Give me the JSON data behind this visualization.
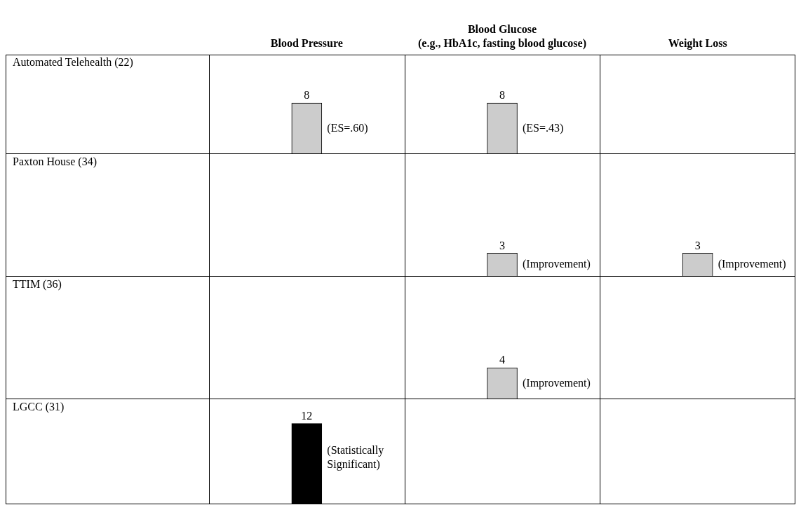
{
  "chart_data": [
    {
      "type": "bar",
      "categories": [
        "Blood Pressure",
        "Blood Glucose\n(e.g., HbA1c, fasting blood glucose)",
        "Weight Loss"
      ],
      "values": [
        8,
        8,
        null
      ],
      "colors": [
        "#cccccc",
        "#cccccc",
        null
      ],
      "data_labels": true,
      "tick_labels": "x",
      "annotations": [
        "Automated Telehealth (22)",
        {
          "text": "(ES=.60)",
          "x": "Blood Pressure",
          "y": 8
        },
        {
          "text": "(ES=.43)",
          "x": "Blood Glucose\n(e.g., HbA1c, fasting blood glucose)",
          "y": 8
        }
      ]
    },
    {
      "type": "bar",
      "categories": [
        "Blood Pressure",
        "Blood Glucose\n(e.g., HbA1c, fasting blood glucose)",
        "Weight Loss"
      ],
      "values": [
        null,
        3,
        3
      ],
      "colors": [
        null,
        "#cccccc",
        "#cccccc"
      ],
      "data_labels": true,
      "tick_labels": false,
      "annotations": [
        "Paxton House (34)",
        {
          "text": "(Improvement)",
          "x": "Blood Glucose\n(e.g., HbA1c, fasting blood glucose)",
          "y": 3
        },
        {
          "text": "(Improvement)",
          "x": "Weight Loss",
          "y": 3
        }
      ]
    },
    {
      "type": "bar",
      "categories": [
        "Blood Pressure",
        "Blood Glucose\n(e.g., HbA1c, fasting blood glucose)",
        "Weight Loss"
      ],
      "values": [
        null,
        4,
        null
      ],
      "colors": [
        null,
        "#cccccc",
        null
      ],
      "data_labels": true,
      "tick_labels": false,
      "annotations": [
        "TTIM (36)",
        {
          "text": "(Improvement)",
          "x": "Blood Glucose\n(e.g., HbA1c, fasting blood glucose)",
          "y": 4
        }
      ]
    },
    {
      "type": "bar",
      "categories": [
        "Blood Pressure",
        "Blood Glucose\n(e.g., HbA1c, fasting blood glucose)",
        "Weight Loss"
      ],
      "values": [
        12,
        null,
        null
      ],
      "colors": [
        "#000000",
        null,
        null
      ],
      "data_labels": true,
      "tick_labels": false,
      "annotations": [
        "LGCC (31)",
        {
          "text": "(Statistically\nSignificant)",
          "x": "Blood Pressure",
          "y": 12
        }
      ]
    }
  ]
}
